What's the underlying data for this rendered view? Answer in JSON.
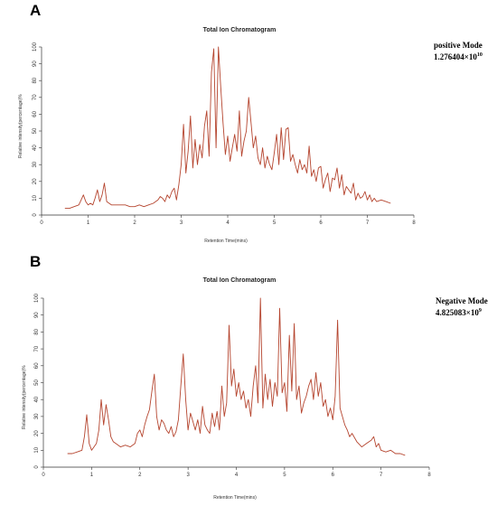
{
  "chart_data": [
    {
      "id": "A",
      "type": "line",
      "panel_label": "A",
      "title": "Total Ion Chromatogram",
      "mode": "positive Mode",
      "total_base": "1.276404×10",
      "total_exp": "10",
      "xlabel": "Retention Time(mins)",
      "ylabel": "Relative intensity(percentage)%",
      "xlim": [
        0,
        8
      ],
      "ylim": [
        0,
        100
      ],
      "xticks": [
        0,
        1,
        2,
        3,
        4,
        5,
        6,
        7,
        8
      ],
      "yticks": [
        0,
        10,
        20,
        30,
        40,
        50,
        60,
        70,
        80,
        90,
        100
      ],
      "grid": false,
      "color": "#b5452f",
      "x": [
        0.5,
        0.6,
        0.7,
        0.8,
        0.85,
        0.9,
        0.95,
        1.0,
        1.05,
        1.1,
        1.15,
        1.2,
        1.25,
        1.3,
        1.35,
        1.4,
        1.5,
        1.6,
        1.7,
        1.8,
        1.9,
        2.0,
        2.1,
        2.2,
        2.3,
        2.4,
        2.5,
        2.55,
        2.6,
        2.65,
        2.7,
        2.75,
        2.8,
        2.85,
        2.9,
        2.95,
        3.0,
        3.05,
        3.1,
        3.15,
        3.2,
        3.25,
        3.3,
        3.35,
        3.4,
        3.45,
        3.5,
        3.55,
        3.6,
        3.65,
        3.7,
        3.75,
        3.8,
        3.85,
        3.9,
        3.95,
        4.0,
        4.05,
        4.1,
        4.15,
        4.2,
        4.25,
        4.3,
        4.35,
        4.4,
        4.45,
        4.5,
        4.55,
        4.6,
        4.65,
        4.7,
        4.75,
        4.8,
        4.85,
        4.9,
        4.95,
        5.0,
        5.05,
        5.1,
        5.15,
        5.2,
        5.25,
        5.3,
        5.35,
        5.4,
        5.45,
        5.5,
        5.55,
        5.6,
        5.65,
        5.7,
        5.75,
        5.8,
        5.85,
        5.9,
        5.95,
        6.0,
        6.05,
        6.1,
        6.15,
        6.2,
        6.25,
        6.3,
        6.35,
        6.4,
        6.45,
        6.5,
        6.55,
        6.6,
        6.65,
        6.7,
        6.75,
        6.8,
        6.85,
        6.9,
        6.95,
        7.0,
        7.05,
        7.1,
        7.15,
        7.2,
        7.3,
        7.4,
        7.5
      ],
      "y": [
        4,
        4,
        5,
        6,
        9,
        12,
        8,
        6,
        7,
        6,
        10,
        15,
        8,
        12,
        19,
        8,
        6,
        6,
        6,
        6,
        5,
        5,
        6,
        5,
        6,
        7,
        9,
        11,
        10,
        8,
        12,
        10,
        14,
        16,
        9,
        18,
        30,
        54,
        25,
        38,
        59,
        28,
        45,
        30,
        42,
        34,
        53,
        62,
        35,
        85,
        99,
        40,
        100,
        76,
        55,
        36,
        47,
        32,
        40,
        48,
        38,
        62,
        35,
        44,
        50,
        70,
        55,
        40,
        47,
        34,
        30,
        40,
        28,
        35,
        30,
        27,
        37,
        48,
        30,
        52,
        33,
        51,
        52,
        32,
        36,
        30,
        25,
        33,
        27,
        30,
        25,
        41,
        23,
        27,
        20,
        28,
        29,
        16,
        21,
        25,
        14,
        22,
        21,
        28,
        16,
        24,
        12,
        17,
        15,
        13,
        19,
        9,
        13,
        10,
        11,
        14,
        9,
        12,
        8,
        10,
        8,
        9,
        8,
        7
      ]
    },
    {
      "id": "B",
      "type": "line",
      "panel_label": "B",
      "title": "Total Ion Chromatogram",
      "mode": "Negative Mode",
      "total_base": "4.825083×10",
      "total_exp": "9",
      "xlabel": "Retention Time(mins)",
      "ylabel": "Relative intensity(percentage)%",
      "xlim": [
        0,
        8
      ],
      "ylim": [
        0,
        100
      ],
      "xticks": [
        0,
        1,
        2,
        3,
        4,
        5,
        6,
        7,
        8
      ],
      "yticks": [
        0,
        10,
        20,
        30,
        40,
        50,
        60,
        70,
        80,
        90,
        100
      ],
      "grid": false,
      "color": "#b5452f",
      "x": [
        0.5,
        0.6,
        0.7,
        0.8,
        0.85,
        0.9,
        0.95,
        1.0,
        1.05,
        1.1,
        1.15,
        1.2,
        1.25,
        1.3,
        1.35,
        1.4,
        1.45,
        1.5,
        1.6,
        1.7,
        1.8,
        1.9,
        1.95,
        2.0,
        2.05,
        2.1,
        2.15,
        2.2,
        2.25,
        2.3,
        2.35,
        2.4,
        2.45,
        2.5,
        2.55,
        2.6,
        2.65,
        2.7,
        2.75,
        2.8,
        2.85,
        2.9,
        2.95,
        3.0,
        3.05,
        3.1,
        3.15,
        3.2,
        3.25,
        3.3,
        3.35,
        3.4,
        3.45,
        3.5,
        3.55,
        3.6,
        3.65,
        3.7,
        3.75,
        3.8,
        3.85,
        3.9,
        3.95,
        4.0,
        4.05,
        4.1,
        4.15,
        4.2,
        4.25,
        4.3,
        4.35,
        4.4,
        4.45,
        4.5,
        4.55,
        4.6,
        4.65,
        4.7,
        4.75,
        4.8,
        4.85,
        4.9,
        4.95,
        5.0,
        5.05,
        5.1,
        5.15,
        5.2,
        5.25,
        5.3,
        5.35,
        5.4,
        5.45,
        5.5,
        5.55,
        5.6,
        5.65,
        5.7,
        5.75,
        5.8,
        5.85,
        5.9,
        5.95,
        6.0,
        6.05,
        6.1,
        6.15,
        6.2,
        6.25,
        6.3,
        6.35,
        6.4,
        6.5,
        6.6,
        6.7,
        6.8,
        6.85,
        6.9,
        6.95,
        7.0,
        7.1,
        7.2,
        7.3,
        7.4,
        7.5
      ],
      "y": [
        8,
        8,
        9,
        10,
        18,
        31,
        14,
        10,
        12,
        14,
        22,
        40,
        25,
        37,
        28,
        18,
        15,
        14,
        12,
        13,
        12,
        14,
        20,
        22,
        18,
        25,
        30,
        34,
        45,
        55,
        30,
        22,
        28,
        26,
        22,
        20,
        24,
        18,
        21,
        28,
        48,
        67,
        40,
        22,
        32,
        27,
        22,
        28,
        20,
        36,
        25,
        22,
        20,
        32,
        24,
        33,
        22,
        48,
        30,
        38,
        84,
        48,
        58,
        42,
        50,
        40,
        45,
        35,
        40,
        30,
        48,
        60,
        38,
        100,
        35,
        55,
        40,
        52,
        36,
        50,
        42,
        94,
        44,
        50,
        33,
        78,
        45,
        85,
        40,
        48,
        32,
        38,
        42,
        48,
        52,
        40,
        56,
        42,
        50,
        36,
        40,
        30,
        35,
        28,
        42,
        87,
        35,
        30,
        25,
        22,
        18,
        20,
        15,
        12,
        14,
        16,
        18,
        12,
        14,
        10,
        9,
        10,
        8,
        8,
        7
      ]
    }
  ]
}
